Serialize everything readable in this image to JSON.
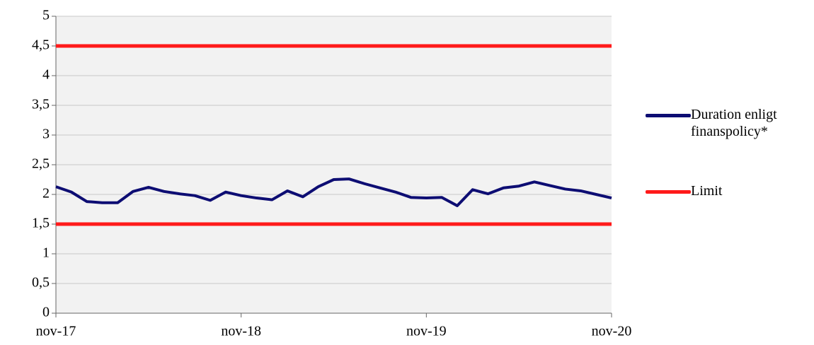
{
  "chart_data": {
    "type": "line",
    "categories": [
      "nov-17",
      null,
      null,
      null,
      null,
      null,
      null,
      null,
      null,
      null,
      null,
      null,
      "nov-18",
      null,
      null,
      null,
      null,
      null,
      null,
      null,
      null,
      null,
      null,
      null,
      "nov-19",
      null,
      null,
      null,
      null,
      null,
      null,
      null,
      null,
      null,
      null,
      null,
      "nov-20"
    ],
    "series": [
      {
        "name": "Duration enligt finanspolicy*",
        "color": "#0d0d73",
        "values": [
          2.13,
          2.04,
          1.88,
          1.86,
          1.86,
          2.05,
          2.12,
          2.05,
          2.01,
          1.98,
          1.9,
          2.04,
          1.98,
          1.94,
          1.91,
          2.06,
          1.96,
          2.13,
          2.25,
          2.26,
          2.18,
          2.11,
          2.04,
          1.95,
          1.94,
          1.95,
          1.81,
          2.08,
          2.01,
          2.11,
          2.14,
          2.21,
          2.15,
          2.09,
          2.06,
          2.0,
          1.94
        ]
      },
      {
        "name": "Limit",
        "color": "#ff1a1a",
        "levels": [
          4.5,
          1.5
        ]
      }
    ],
    "ylim": [
      0,
      5
    ],
    "yticks": [
      0,
      {
        "value": 0.5,
        "label": "0,5"
      },
      1,
      {
        "value": 1.5,
        "label": "1,5"
      },
      2,
      {
        "value": 2.5,
        "label": "2,5"
      },
      3,
      {
        "value": 3.5,
        "label": "3,5"
      },
      4,
      {
        "value": 4.5,
        "label": "4,5"
      },
      5
    ],
    "grid": true,
    "legend": "right"
  }
}
